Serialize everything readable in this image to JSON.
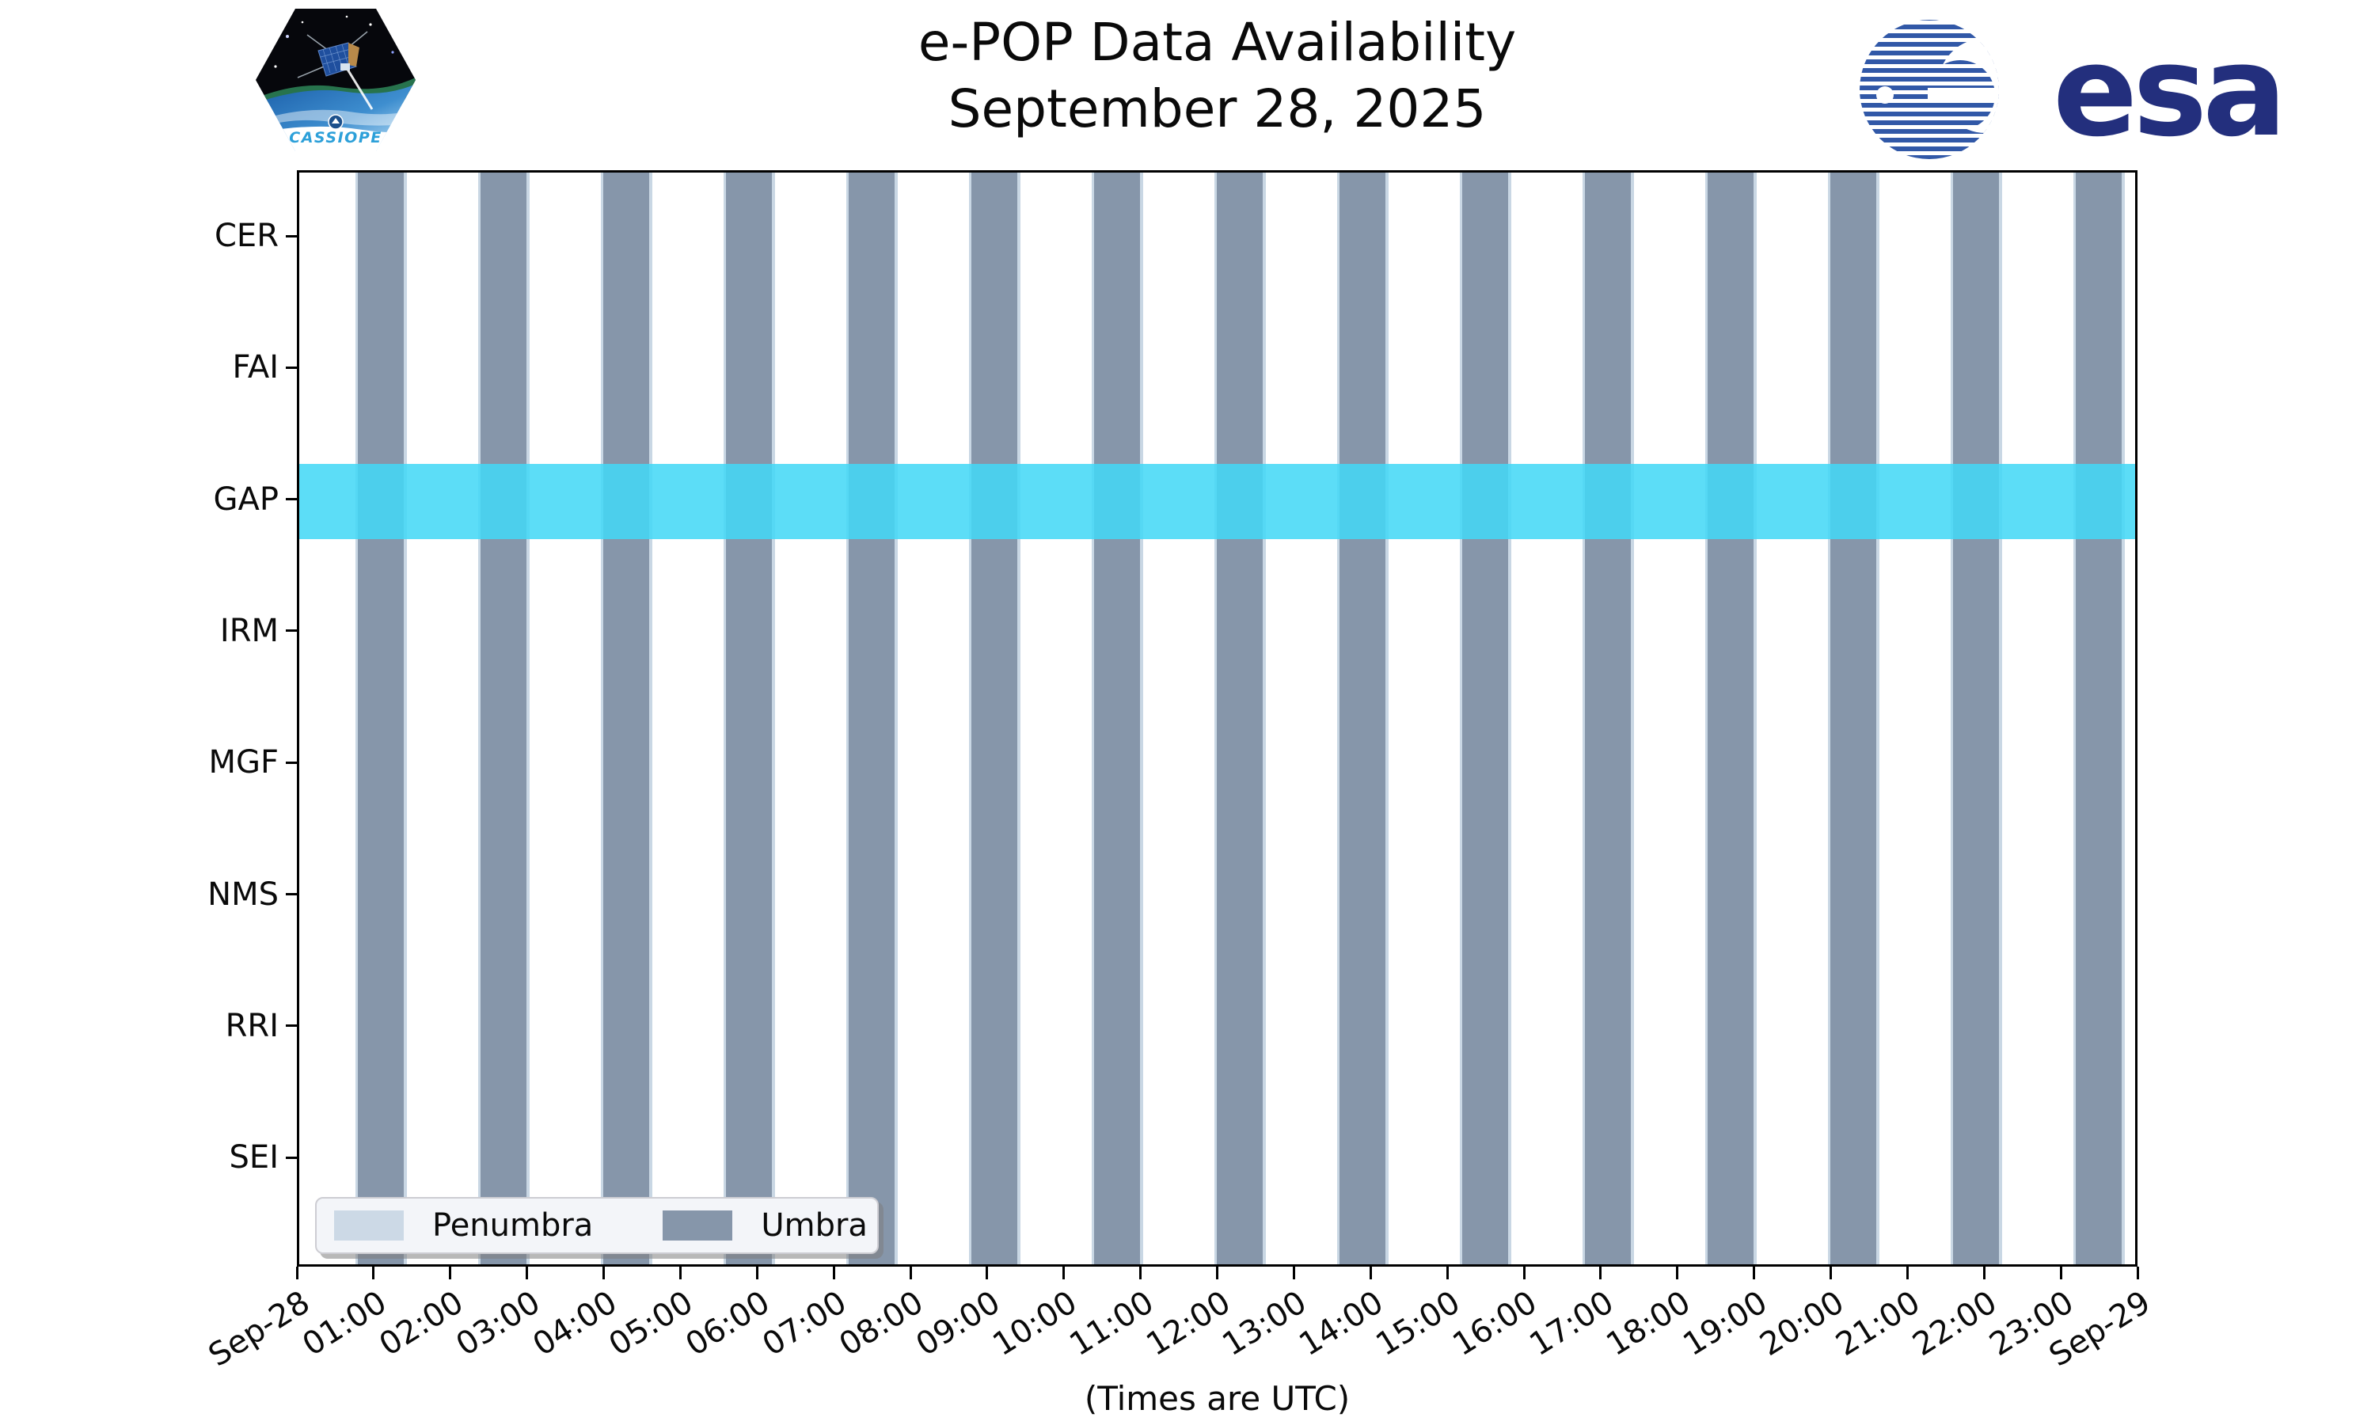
{
  "header": {
    "title_line1": "e-POP Data Availability",
    "title_line2": "September 28, 2025",
    "cassiope_patch_label": "CASSIOPE",
    "esa_logo_label": "esa"
  },
  "footer": {
    "note": "(Times are UTC)"
  },
  "legend": {
    "entries": [
      {
        "label": "Penumbra",
        "color": "#ccd9e6"
      },
      {
        "label": "Umbra",
        "color": "#8696aa"
      }
    ]
  },
  "chart_data": {
    "type": "timeline",
    "title": "e-POP Data Availability",
    "subtitle": "September 28, 2025",
    "xlabel": "(Times are UTC)",
    "x_range_hours": [
      0,
      24
    ],
    "x_tick_labels": [
      "Sep-28",
      "01:00",
      "02:00",
      "03:00",
      "04:00",
      "05:00",
      "06:00",
      "07:00",
      "08:00",
      "09:00",
      "10:00",
      "11:00",
      "12:00",
      "13:00",
      "14:00",
      "15:00",
      "16:00",
      "17:00",
      "18:00",
      "19:00",
      "20:00",
      "21:00",
      "22:00",
      "23:00",
      "Sep-29"
    ],
    "instruments": [
      "CER",
      "FAI",
      "GAP",
      "IRM",
      "MGF",
      "NMS",
      "RRI",
      "SEI"
    ],
    "availability_bands": [
      {
        "instrument": "GAP",
        "start": "00:00",
        "end": "24:00",
        "color": "#44d8f6",
        "alpha": 0.87
      }
    ],
    "umbra_intervals_utc": [
      [
        "00:46",
        "01:22"
      ],
      [
        "02:22",
        "02:58"
      ],
      [
        "03:58",
        "04:34"
      ],
      [
        "05:34",
        "06:10"
      ],
      [
        "07:10",
        "07:46"
      ],
      [
        "08:46",
        "09:22"
      ],
      [
        "10:22",
        "10:58"
      ],
      [
        "11:58",
        "12:34"
      ],
      [
        "13:34",
        "14:10"
      ],
      [
        "15:10",
        "15:46"
      ],
      [
        "16:46",
        "17:22"
      ],
      [
        "18:22",
        "18:58"
      ],
      [
        "19:58",
        "20:34"
      ],
      [
        "21:34",
        "22:10"
      ],
      [
        "23:10",
        "23:46"
      ]
    ],
    "penumbra_minutes_each_side": 2,
    "colors": {
      "umbra": "#8696aa",
      "penumbra": "#c9d7e4"
    },
    "legend_position": "lower left",
    "grid": false
  }
}
